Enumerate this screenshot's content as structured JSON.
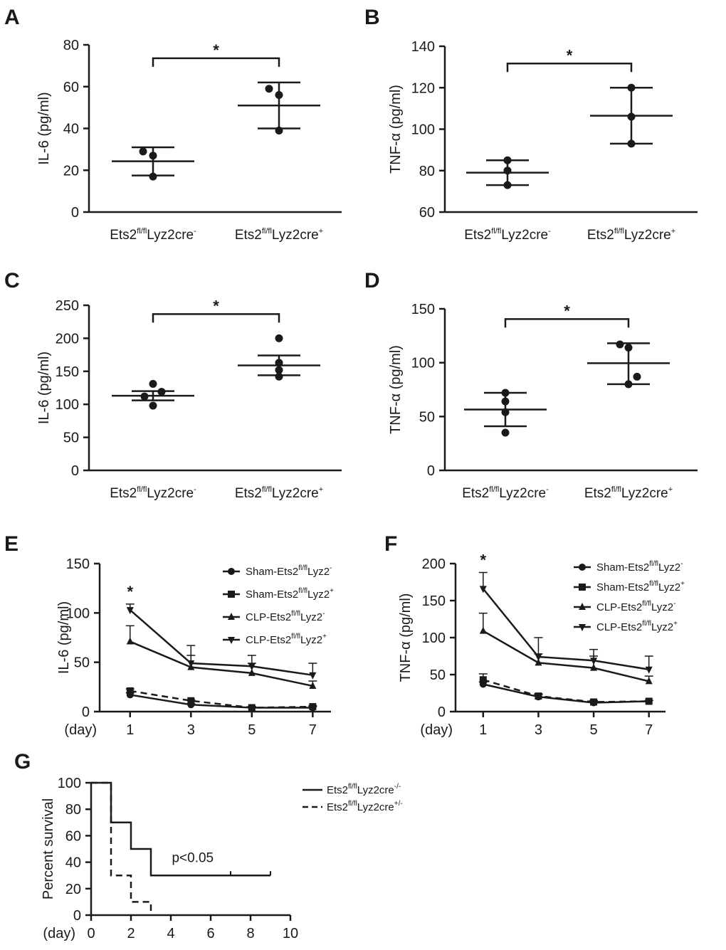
{
  "chart_data": [
    {
      "id": "A",
      "type": "scatter",
      "letter": "A",
      "ylabel": "IL-6 (pg/ml)",
      "ylim": [
        0,
        80
      ],
      "yticks": [
        0,
        20,
        40,
        60,
        80
      ],
      "groups": [
        {
          "label_main": "Ets2",
          "label_sup": "fl/fl",
          "label_rest": "Lyz2cre",
          "label_end": "-",
          "points": [
            29,
            27,
            17
          ],
          "mean": 24.3,
          "err_low": 17.5,
          "err_high": 31
        },
        {
          "label_main": "Ets2",
          "label_sup": "fl/fl",
          "label_rest": "Lyz2cre",
          "label_end": "+",
          "points": [
            59,
            56,
            39
          ],
          "mean": 51,
          "err_low": 40,
          "err_high": 62
        }
      ],
      "significance": "*"
    },
    {
      "id": "B",
      "type": "scatter",
      "letter": "B",
      "ylabel": "TNF-α (pg/ml)",
      "ylim": [
        60,
        140
      ],
      "yticks": [
        60,
        80,
        100,
        120,
        140
      ],
      "groups": [
        {
          "label_main": "Ets2",
          "label_sup": "fl/fl",
          "label_rest": "Lyz2cre",
          "label_end": "-",
          "points": [
            85,
            80,
            73
          ],
          "mean": 79,
          "err_low": 73,
          "err_high": 85
        },
        {
          "label_main": "Ets2",
          "label_sup": "fl/fl",
          "label_rest": "Lyz2cre",
          "label_end": "+",
          "points": [
            120,
            106,
            93
          ],
          "mean": 106.5,
          "err_low": 93,
          "err_high": 120
        }
      ],
      "significance": "*"
    },
    {
      "id": "C",
      "type": "scatter",
      "letter": "C",
      "ylabel": "IL-6 (pg/ml)",
      "ylim": [
        0,
        250
      ],
      "yticks": [
        0,
        50,
        100,
        150,
        200,
        250
      ],
      "groups": [
        {
          "label_main": "Ets2",
          "label_sup": "fl/fl",
          "label_rest": "Lyz2cre",
          "label_end": "-",
          "points": [
            131,
            119,
            112,
            98
          ],
          "mean": 113,
          "err_low": 106,
          "err_high": 120
        },
        {
          "label_main": "Ets2",
          "label_sup": "fl/fl",
          "label_rest": "Lyz2cre",
          "label_end": "+",
          "points": [
            200,
            163,
            152,
            142
          ],
          "mean": 159,
          "err_low": 144,
          "err_high": 174
        }
      ],
      "significance": "*"
    },
    {
      "id": "D",
      "type": "scatter",
      "letter": "D",
      "ylabel": "TNF-α (pg/ml)",
      "ylim": [
        0,
        150
      ],
      "yticks": [
        0,
        50,
        100,
        150
      ],
      "groups": [
        {
          "label_main": "Ets2",
          "label_sup": "fl/fl",
          "label_rest": "Lyz2cre",
          "label_end": "-",
          "points": [
            72,
            64,
            54,
            35
          ],
          "mean": 56.5,
          "err_low": 41,
          "err_high": 72
        },
        {
          "label_main": "Ets2",
          "label_sup": "fl/fl",
          "label_rest": "Lyz2cre",
          "label_end": "+",
          "points": [
            117,
            114,
            87,
            80
          ],
          "mean": 99.5,
          "err_low": 80,
          "err_high": 118
        }
      ],
      "significance": "*"
    },
    {
      "id": "E",
      "type": "line",
      "letter": "E",
      "ylabel": "IL-6 (pg/ml)",
      "ylim": [
        0,
        150
      ],
      "yticks": [
        0,
        50,
        100,
        150
      ],
      "xlabel": "(day)",
      "x": [
        1,
        3,
        5,
        7
      ],
      "xlim": [
        0,
        7.6
      ],
      "annotation": "*",
      "series": [
        {
          "name_pre": "Sham-Ets2",
          "name_sup": "fl/fl",
          "name_post": "Lyz2",
          "name_end": "-",
          "marker": "circle",
          "dashed": false,
          "values": [
            17,
            7,
            4,
            4
          ],
          "err": [
            2,
            1,
            1,
            1
          ]
        },
        {
          "name_pre": "Sham-Ets2",
          "name_sup": "fl/fl",
          "name_post": "Lyz2",
          "name_end": "+",
          "marker": "square",
          "dashed": true,
          "values": [
            21,
            11,
            4,
            5
          ],
          "err": [
            2,
            1,
            1,
            1
          ]
        },
        {
          "name_pre": "CLP-Ets2",
          "name_sup": "fl/fl",
          "name_post": "Lyz2",
          "name_end": "-",
          "marker": "triangle",
          "dashed": false,
          "values": [
            71,
            45,
            39,
            26
          ],
          "err": [
            16,
            12,
            10,
            5
          ]
        },
        {
          "name_pre": "CLP-Ets2",
          "name_sup": "fl/fl",
          "name_post": "Lyz2",
          "name_end": "+",
          "marker": "triangle-down",
          "dashed": false,
          "values": [
            103,
            49,
            46,
            37
          ],
          "err": [
            6,
            18,
            11,
            12
          ]
        }
      ]
    },
    {
      "id": "F",
      "type": "line",
      "letter": "F",
      "ylabel": "TNF-α (pg/ml)",
      "ylim": [
        0,
        200
      ],
      "yticks": [
        0,
        50,
        100,
        150,
        200
      ],
      "xlabel": "(day)",
      "x": [
        1,
        3,
        5,
        7
      ],
      "xlim": [
        0,
        7.6
      ],
      "annotation": "*",
      "series": [
        {
          "name_pre": "Sham-Ets2",
          "name_sup": "fl/fl",
          "name_post": "Lyz2",
          "name_end": "-",
          "marker": "circle",
          "dashed": false,
          "values": [
            37,
            20,
            12,
            14
          ],
          "err": [
            3,
            3,
            2,
            1
          ]
        },
        {
          "name_pre": "Sham-Ets2",
          "name_sup": "fl/fl",
          "name_post": "Lyz2",
          "name_end": "+",
          "marker": "square",
          "dashed": true,
          "values": [
            43,
            21,
            13,
            14
          ],
          "err": [
            8,
            3,
            2,
            1
          ]
        },
        {
          "name_pre": "CLP-Ets2",
          "name_sup": "fl/fl",
          "name_post": "Lyz2",
          "name_end": "-",
          "marker": "triangle",
          "dashed": false,
          "values": [
            109,
            66,
            59,
            41
          ],
          "err": [
            24,
            12,
            16,
            7
          ]
        },
        {
          "name_pre": "CLP-Ets2",
          "name_sup": "fl/fl",
          "name_post": "Lyz2",
          "name_end": "+",
          "marker": "triangle-down",
          "dashed": false,
          "values": [
            166,
            74,
            69,
            57
          ],
          "err": [
            22,
            26,
            15,
            18
          ]
        }
      ]
    },
    {
      "id": "G",
      "type": "line",
      "subtype": "kaplan-meier",
      "letter": "G",
      "ylabel": "Percent survival",
      "ylim": [
        0,
        100
      ],
      "yticks": [
        0,
        20,
        40,
        60,
        80,
        100
      ],
      "xlabel": "(day)",
      "xlim": [
        0,
        10
      ],
      "xticks": [
        0,
        2,
        4,
        6,
        8,
        10
      ],
      "annotation": "p<0.05",
      "series": [
        {
          "name_main": "Ets2",
          "name_sup": "fl/fl",
          "name_post": "Lyz2cre",
          "name_end": "-/-",
          "dashed": false,
          "steps": [
            [
              0,
              100
            ],
            [
              1,
              100
            ],
            [
              1,
              70
            ],
            [
              2,
              70
            ],
            [
              2,
              50
            ],
            [
              3,
              50
            ],
            [
              3,
              30
            ],
            [
              9,
              30
            ]
          ],
          "censor": [
            7,
            9
          ]
        },
        {
          "name_main": "Ets2",
          "name_sup": "fl/fl",
          "name_post": "Lyz2cre",
          "name_end": "+/-",
          "dashed": true,
          "steps": [
            [
              0,
              100
            ],
            [
              1,
              100
            ],
            [
              1,
              30
            ],
            [
              2,
              30
            ],
            [
              2,
              10
            ],
            [
              3,
              10
            ],
            [
              3,
              0
            ]
          ],
          "censor": []
        }
      ]
    }
  ]
}
